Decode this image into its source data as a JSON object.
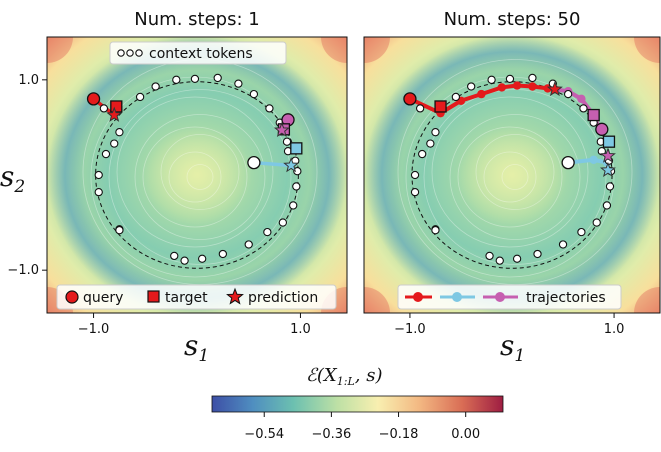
{
  "chart_data": [
    {
      "type": "scatter",
      "title": "Num. steps: 1",
      "xlabel": "s_1",
      "ylabel": "s_2",
      "xlim": [
        -1.45,
        1.45
      ],
      "ylim": [
        -1.45,
        1.45
      ],
      "xticks": [
        -1.0,
        1.0
      ],
      "yticks": [
        -1.0,
        1.0
      ],
      "xtick_labels": [
        "−1.0",
        "1.0"
      ],
      "ytick_labels": [
        "−1.0",
        "1.0"
      ],
      "context_tokens": [
        [
          -0.9,
          0.7
        ],
        [
          -0.75,
          0.45
        ],
        [
          -0.55,
          0.82
        ],
        [
          -0.4,
          0.93
        ],
        [
          -0.2,
          1.0
        ],
        [
          -0.02,
          1.01
        ],
        [
          0.2,
          1.02
        ],
        [
          0.4,
          0.96
        ],
        [
          0.55,
          0.85
        ],
        [
          0.7,
          0.7
        ],
        [
          0.8,
          0.55
        ],
        [
          0.87,
          0.35
        ],
        [
          0.88,
          0.25
        ],
        [
          0.95,
          0.15
        ],
        [
          0.97,
          0.04
        ],
        [
          0.96,
          -0.12
        ],
        [
          0.93,
          -0.32
        ],
        [
          0.83,
          -0.5
        ],
        [
          0.68,
          -0.6
        ],
        [
          0.5,
          -0.73
        ],
        [
          0.25,
          -0.83
        ],
        [
          0.05,
          -0.88
        ],
        [
          -0.12,
          -0.9
        ],
        [
          -0.22,
          -0.85
        ],
        [
          -0.75,
          -0.57
        ],
        [
          -0.75,
          -0.58
        ],
        [
          -0.95,
          -0.18
        ],
        [
          -0.95,
          0.0
        ],
        [
          -0.88,
          0.22
        ],
        [
          -0.8,
          0.33
        ]
      ],
      "query": [
        -1.0,
        0.8
      ],
      "target": [
        -0.78,
        0.72
      ],
      "prediction": [
        -0.8,
        0.63
      ],
      "points": [
        {
          "role": "query",
          "x": -1.0,
          "y": 0.8
        },
        {
          "role": "target",
          "x": -0.78,
          "y": 0.72
        },
        {
          "role": "prediction",
          "x": -0.8,
          "y": 0.63
        },
        {
          "role": "query",
          "x": 0.88,
          "y": 0.58
        },
        {
          "role": "target",
          "x": 0.84,
          "y": 0.48
        },
        {
          "role": "prediction",
          "x": 0.82,
          "y": 0.47
        },
        {
          "role": "query",
          "x": 0.55,
          "y": 0.13
        },
        {
          "role": "target",
          "x": 0.96,
          "y": 0.28
        },
        {
          "role": "prediction",
          "x": 0.91,
          "y": 0.1
        }
      ],
      "segments": [
        {
          "color": "#e41a1c",
          "from": [
            -1.0,
            0.8
          ],
          "to": [
            -0.8,
            0.63
          ]
        },
        {
          "color": "#c65fb0",
          "from": [
            0.88,
            0.58
          ],
          "to": [
            0.82,
            0.47
          ]
        },
        {
          "color": "#7ec8e3",
          "from": [
            0.55,
            0.13
          ],
          "to": [
            0.91,
            0.1
          ]
        }
      ],
      "legend": [
        "context tokens",
        "query",
        "target",
        "prediction"
      ]
    },
    {
      "type": "scatter",
      "title": "Num. steps: 50",
      "xlabel": "s_1",
      "ylabel": "",
      "xlim": [
        -1.45,
        1.45
      ],
      "ylim": [
        -1.45,
        1.45
      ],
      "xticks": [
        -1.0,
        1.0
      ],
      "xtick_labels": [
        "−1.0",
        "1.0"
      ],
      "context_tokens": [
        [
          -0.9,
          0.7
        ],
        [
          -0.75,
          0.45
        ],
        [
          -0.55,
          0.82
        ],
        [
          -0.4,
          0.93
        ],
        [
          -0.2,
          1.0
        ],
        [
          -0.02,
          1.01
        ],
        [
          0.2,
          1.02
        ],
        [
          0.4,
          0.96
        ],
        [
          0.55,
          0.85
        ],
        [
          0.7,
          0.7
        ],
        [
          0.8,
          0.55
        ],
        [
          0.87,
          0.35
        ],
        [
          0.88,
          0.25
        ],
        [
          0.95,
          0.15
        ],
        [
          0.97,
          0.04
        ],
        [
          0.96,
          -0.12
        ],
        [
          0.93,
          -0.32
        ],
        [
          0.83,
          -0.5
        ],
        [
          0.68,
          -0.6
        ],
        [
          0.5,
          -0.73
        ],
        [
          0.25,
          -0.83
        ],
        [
          0.05,
          -0.88
        ],
        [
          -0.12,
          -0.9
        ],
        [
          -0.22,
          -0.85
        ],
        [
          -0.75,
          -0.57
        ],
        [
          -0.75,
          -0.58
        ],
        [
          -0.95,
          -0.18
        ],
        [
          -0.95,
          0.0
        ],
        [
          -0.88,
          0.22
        ],
        [
          -0.8,
          0.33
        ]
      ],
      "points": [
        {
          "role": "query",
          "x": -1.0,
          "y": 0.8
        },
        {
          "role": "target",
          "x": -0.7,
          "y": 0.72
        },
        {
          "role": "prediction",
          "x": 0.42,
          "y": 0.9
        },
        {
          "role": "query",
          "x": 0.88,
          "y": 0.48
        },
        {
          "role": "target",
          "x": 0.8,
          "y": 0.63
        },
        {
          "role": "prediction",
          "x": 0.94,
          "y": 0.2
        },
        {
          "role": "query",
          "x": 0.55,
          "y": 0.13
        },
        {
          "role": "target",
          "x": 0.95,
          "y": 0.35
        },
        {
          "role": "prediction",
          "x": 0.94,
          "y": 0.05
        }
      ],
      "trajectories": [
        {
          "color": "#e41a1c",
          "points": [
            [
              -1.0,
              0.8
            ],
            [
              -0.7,
              0.65
            ],
            [
              -0.5,
              0.78
            ],
            [
              -0.3,
              0.85
            ],
            [
              -0.1,
              0.92
            ],
            [
              0.05,
              0.94
            ],
            [
              0.2,
              0.93
            ],
            [
              0.35,
              0.91
            ],
            [
              0.42,
              0.9
            ]
          ]
        },
        {
          "color": "#c65fb0",
          "points": [
            [
              0.42,
              0.9
            ],
            [
              0.55,
              0.88
            ],
            [
              0.68,
              0.8
            ],
            [
              0.8,
              0.63
            ],
            [
              0.86,
              0.48
            ]
          ]
        },
        {
          "color": "#7ec8e3",
          "points": [
            [
              0.55,
              0.13
            ],
            [
              0.8,
              0.16
            ],
            [
              0.93,
              0.13
            ]
          ]
        }
      ],
      "legend": [
        "trajectories"
      ]
    }
  ],
  "colorbar": {
    "label": "ℰ(X_{1:L}, s)",
    "ticks": [
      -0.54,
      -0.36,
      -0.18,
      0.0
    ],
    "tick_labels": [
      "−0.54",
      "−0.36",
      "−0.18",
      "0.00"
    ],
    "range": [
      -0.68,
      0.1
    ],
    "colors": [
      "#3d4fa6",
      "#4f8ec0",
      "#6cc0b0",
      "#bde0a5",
      "#f8efb0",
      "#f3b983",
      "#d96d55",
      "#9e1d42"
    ]
  },
  "text": {
    "title_left": "Num. steps: 1",
    "title_right": "Num. steps: 50",
    "xlabel_left": "s",
    "xlabel_left_sub": "1",
    "xlabel_right": "s",
    "xlabel_right_sub": "1",
    "ylabel": "s",
    "ylabel_sub": "2",
    "legend_context": "context tokens",
    "legend_query": "query",
    "legend_target": "target",
    "legend_prediction": "prediction",
    "legend_trajectories": "trajectories",
    "cb_label": "ℰ(",
    "cb_label_x": "X",
    "cb_label_sub": "1:L",
    "cb_label_rest": ", s)"
  }
}
